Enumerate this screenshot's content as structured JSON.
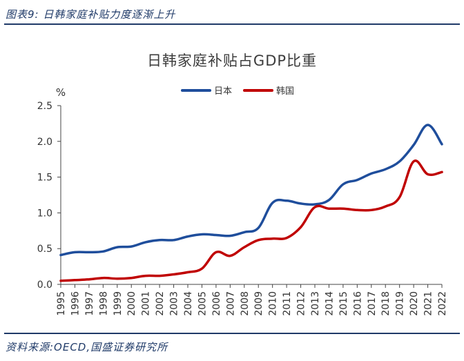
{
  "header": {
    "caption": "图表9:  日韩家庭补贴力度逐渐上升"
  },
  "footer": {
    "source": "资料来源:OECD,国盛证券研究所"
  },
  "chart_data": {
    "type": "line",
    "title": "日韩家庭补贴占GDP比重",
    "ylabel": "%",
    "xlabel": "",
    "ylim": [
      0,
      2.5
    ],
    "yticks": [
      "0.0",
      "0.5",
      "1.0",
      "1.5",
      "2.0",
      "2.5"
    ],
    "grid": false,
    "legend_position": "top-center",
    "x": [
      "1995",
      "1996",
      "1997",
      "1998",
      "1999",
      "2000",
      "2001",
      "2002",
      "2003",
      "2004",
      "2005",
      "2006",
      "2007",
      "2008",
      "2009",
      "2010",
      "2011",
      "2012",
      "2013",
      "2014",
      "2015",
      "2016",
      "2017",
      "2018",
      "2019",
      "2020",
      "2021",
      "2022"
    ],
    "series": [
      {
        "name": "日本",
        "color": "#1f4e9c",
        "values": [
          0.41,
          0.45,
          0.45,
          0.46,
          0.52,
          0.53,
          0.59,
          0.62,
          0.62,
          0.67,
          0.7,
          0.69,
          0.68,
          0.73,
          0.79,
          1.14,
          1.17,
          1.13,
          1.12,
          1.18,
          1.4,
          1.46,
          1.55,
          1.61,
          1.72,
          1.95,
          2.23,
          1.96
        ]
      },
      {
        "name": "韩国",
        "color": "#c00000",
        "values": [
          0.05,
          0.06,
          0.07,
          0.09,
          0.08,
          0.09,
          0.12,
          0.12,
          0.14,
          0.17,
          0.22,
          0.45,
          0.4,
          0.52,
          0.62,
          0.64,
          0.65,
          0.8,
          1.08,
          1.06,
          1.06,
          1.04,
          1.04,
          1.09,
          1.22,
          1.72,
          1.54,
          1.57
        ]
      }
    ]
  }
}
